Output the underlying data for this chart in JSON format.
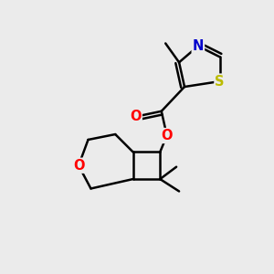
{
  "bg_color": "#ebebeb",
  "bond_color": "#000000",
  "bond_width": 1.8,
  "atom_colors": {
    "O": "#ff0000",
    "N": "#0000cc",
    "S": "#bbbb00",
    "C": "#000000"
  },
  "font_size_atom": 10.5
}
